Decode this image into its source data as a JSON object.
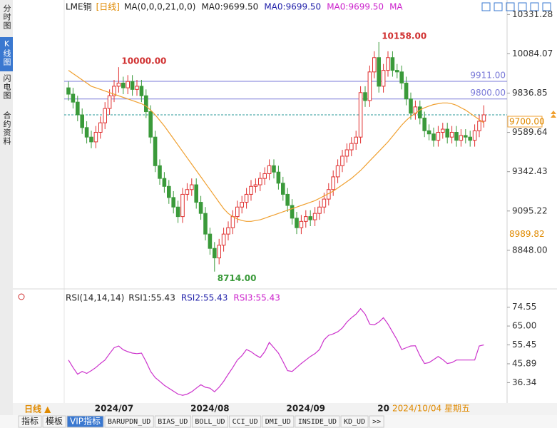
{
  "sidebar": [
    "分时图",
    "K线图",
    "闪电图",
    "合约资料"
  ],
  "bottom_bar": {
    "period": "日线 ▲",
    "cursor_date": "2024/10/04 星期五"
  },
  "tabs": [
    "指标",
    "模板",
    "VIP指标",
    "BARUPDN_UD",
    "BIAS_UD",
    "BOLL_UD",
    "CCI_UD",
    "DMI_UD",
    "INSIDE_UD",
    "KD_UD",
    ">>"
  ],
  "chart_data": [
    {
      "type": "candlestick",
      "title": "LME铜",
      "period": "[日线]",
      "legend": [
        {
          "text": "MA(0,0,0,21,0,0)",
          "color": "#222222"
        },
        {
          "text": "MA0:9699.50",
          "color": "#222222"
        },
        {
          "text": "MA0:9699.50",
          "color": "#2222aa"
        },
        {
          "text": "MA0:9699.50",
          "color": "#cc22cc"
        },
        {
          "text": "MA",
          "color": "#cc22cc"
        }
      ],
      "categories": [
        null,
        null,
        null,
        null,
        null,
        null,
        null,
        null,
        null,
        null,
        "2024/07",
        null,
        null,
        null,
        null,
        null,
        null,
        null,
        null,
        null,
        null,
        null,
        null,
        null,
        null,
        null,
        null,
        null,
        null,
        null,
        null,
        "2024/08",
        null,
        null,
        null,
        null,
        null,
        null,
        null,
        null,
        null,
        null,
        null,
        null,
        null,
        null,
        null,
        null,
        null,
        null,
        null,
        null,
        "2024/09",
        null,
        null,
        null,
        null,
        null,
        null,
        null,
        null,
        null,
        null,
        null,
        null,
        null,
        null,
        null,
        null,
        "20",
        null,
        null,
        null,
        null,
        null,
        null,
        null,
        null,
        null,
        null,
        null,
        null,
        null,
        null,
        null,
        null,
        null,
        null,
        null,
        null,
        null,
        null
      ],
      "open": [
        9870,
        9830,
        9780,
        9700,
        9620,
        9560,
        9530,
        9590,
        9650,
        9740,
        9820,
        9880,
        9900,
        9870,
        9910,
        9860,
        9880,
        9820,
        9720,
        9560,
        9380,
        9300,
        9250,
        9180,
        9120,
        9060,
        9200,
        9230,
        9260,
        9150,
        9080,
        8950,
        8860,
        8800,
        8880,
        8950,
        8990,
        9060,
        9120,
        9150,
        9200,
        9250,
        9260,
        9300,
        9330,
        9380,
        9340,
        9270,
        9200,
        9130,
        9050,
        8990,
        9030,
        9060,
        9040,
        9080,
        9120,
        9170,
        9230,
        9310,
        9380,
        9440,
        9480,
        9520,
        9560,
        9840,
        9790,
        9970,
        10060,
        9880,
        9980,
        10060,
        9980,
        9970,
        9900,
        9800,
        9710,
        9750,
        9680,
        9600,
        9580,
        9540,
        9590,
        9610,
        9560,
        9590,
        9540,
        9570,
        9560,
        9540,
        9600,
        9660
      ],
      "high": [
        9910,
        9870,
        9820,
        9740,
        9660,
        9600,
        9630,
        9690,
        9780,
        9860,
        9920,
        10000,
        9940,
        9950,
        9950,
        9920,
        9920,
        9860,
        9760,
        9600,
        9420,
        9340,
        9290,
        9220,
        9160,
        9240,
        9270,
        9300,
        9300,
        9190,
        9120,
        8990,
        8900,
        8920,
        8990,
        9030,
        9100,
        9160,
        9190,
        9240,
        9290,
        9300,
        9340,
        9370,
        9420,
        9420,
        9380,
        9310,
        9240,
        9170,
        9090,
        9070,
        9100,
        9100,
        9120,
        9160,
        9210,
        9270,
        9350,
        9420,
        9480,
        9520,
        9560,
        9600,
        9880,
        9880,
        10010,
        10100,
        10158,
        10020,
        10100,
        10100,
        10020,
        10010,
        9940,
        9840,
        9790,
        9790,
        9720,
        9640,
        9620,
        9630,
        9650,
        9650,
        9630,
        9630,
        9610,
        9610,
        9600,
        9640,
        9700,
        9760
      ],
      "low": [
        9790,
        9740,
        9660,
        9580,
        9520,
        9490,
        9490,
        9550,
        9610,
        9700,
        9780,
        9840,
        9830,
        9830,
        9820,
        9820,
        9780,
        9680,
        9520,
        9340,
        9260,
        9210,
        9140,
        9080,
        9020,
        9020,
        9160,
        9190,
        9110,
        9040,
        8910,
        8820,
        8714,
        8760,
        8840,
        8910,
        8950,
        9020,
        9080,
        9110,
        9160,
        9210,
        9220,
        9260,
        9290,
        9300,
        9230,
        9160,
        9090,
        9010,
        8950,
        8950,
        8990,
        9000,
        9000,
        9040,
        9080,
        9130,
        9190,
        9270,
        9340,
        9400,
        9440,
        9480,
        9520,
        9750,
        9750,
        9930,
        9840,
        9840,
        9940,
        9940,
        9930,
        9860,
        9760,
        9670,
        9670,
        9640,
        9560,
        9540,
        9500,
        9500,
        9550,
        9520,
        9520,
        9500,
        9500,
        9520,
        9500,
        9500,
        9560,
        9620
      ],
      "close": [
        9830,
        9780,
        9700,
        9620,
        9560,
        9530,
        9590,
        9650,
        9740,
        9820,
        9880,
        9900,
        9870,
        9910,
        9860,
        9880,
        9820,
        9720,
        9560,
        9380,
        9300,
        9250,
        9180,
        9120,
        9060,
        9200,
        9230,
        9260,
        9150,
        9080,
        8950,
        8860,
        8800,
        8880,
        8950,
        8990,
        9060,
        9120,
        9150,
        9200,
        9250,
        9260,
        9300,
        9330,
        9380,
        9340,
        9270,
        9200,
        9130,
        9050,
        8990,
        9030,
        9060,
        9040,
        9080,
        9120,
        9170,
        9230,
        9310,
        9380,
        9440,
        9480,
        9520,
        9560,
        9840,
        9790,
        9970,
        10060,
        9880,
        9980,
        10060,
        9980,
        9970,
        9900,
        9800,
        9710,
        9750,
        9680,
        9600,
        9580,
        9540,
        9590,
        9610,
        9560,
        9590,
        9540,
        9570,
        9560,
        9540,
        9600,
        9660,
        9700
      ],
      "up_color": "#e03030",
      "down_color": "#3a9a3a",
      "series": [
        {
          "color": "#f0a030",
          "values": [
            9980,
            9960,
            9940,
            9920,
            9900,
            9880,
            9870,
            9860,
            9850,
            9840,
            9830,
            9820,
            9810,
            9800,
            9790,
            9780,
            9770,
            9755,
            9730,
            9700,
            9665,
            9630,
            9590,
            9550,
            9510,
            9470,
            9430,
            9390,
            9350,
            9310,
            9270,
            9230,
            9190,
            9150,
            9110,
            9080,
            9060,
            9045,
            9035,
            9030,
            9030,
            9035,
            9040,
            9050,
            9060,
            9070,
            9080,
            9090,
            9100,
            9110,
            9120,
            9130,
            9140,
            9150,
            9160,
            9175,
            9190,
            9205,
            9220,
            9240,
            9260,
            9280,
            9300,
            9325,
            9350,
            9380,
            9410,
            9440,
            9470,
            9500,
            9530,
            9565,
            9600,
            9635,
            9665,
            9690,
            9710,
            9730,
            9745,
            9755,
            9765,
            9770,
            9775,
            9775,
            9770,
            9760,
            9745,
            9730,
            9710,
            9690,
            9670,
            9650
          ]
        }
      ],
      "ylim": [
        8650,
        10400
      ],
      "yticks": [
        10331.28,
        10084.07,
        9836.85,
        9589.64,
        9342.43,
        9095.22,
        {
          "value": 8848,
          "label": "8848.00"
        }
      ],
      "hlines": [
        {
          "value": 9911,
          "label": "9911.00",
          "color": "#7a7ad8"
        },
        {
          "value": 9800,
          "label": "9800.00",
          "color": "#7a7ad8"
        }
      ],
      "current": {
        "value": 9700,
        "label": "9700.00",
        "color": "#2a9a9a"
      },
      "axis_marker": {
        "value": 8989.82,
        "label": "8989.82"
      },
      "annotations": [
        {
          "text": "10000.00",
          "value": 10000,
          "color": "#d03030"
        },
        {
          "text": "10158.00",
          "value": 10158,
          "color": "#d03030"
        },
        {
          "text": "8714.00",
          "value": 8714,
          "color": "#3a9a3a"
        }
      ]
    },
    {
      "type": "line",
      "title": "RSI(14,14,14)",
      "legend": [
        {
          "text": "RSI1:55.43",
          "color": "#222222"
        },
        {
          "text": "RSI2:55.43",
          "color": "#2222aa"
        },
        {
          "text": "RSI3:55.43",
          "color": "#cc22cc"
        }
      ],
      "series": [
        {
          "color": "#cc33cc",
          "values": [
            47.8,
            44,
            40.6,
            42,
            41,
            42.4,
            44,
            46,
            47.8,
            51,
            54,
            54.9,
            53,
            52,
            51.3,
            51,
            51.3,
            47,
            42,
            38.9,
            37,
            35,
            33.5,
            32,
            30.5,
            29.9,
            30.5,
            31.7,
            33.5,
            35.3,
            34,
            33.5,
            31.7,
            34,
            37,
            40.6,
            44,
            47.8,
            50,
            53.1,
            52,
            50.3,
            49,
            52,
            56.7,
            54,
            51.3,
            47,
            42.4,
            42,
            44,
            46,
            47.8,
            49.6,
            51,
            53.1,
            58,
            60.3,
            61,
            62.1,
            64,
            67,
            69.2,
            71,
            73.8,
            71,
            66,
            65.6,
            67,
            69.2,
            66,
            62,
            58,
            53.1,
            54,
            54.9,
            55,
            50,
            46,
            46.5,
            48,
            49.6,
            48,
            46,
            46.5,
            47.8,
            47.8,
            47.8,
            47.8,
            47.8,
            54.9,
            55.43
          ]
        }
      ],
      "ylim": [
        26,
        82
      ],
      "yticks": [
        74.55,
        {
          "value": 65,
          "label": "65.00"
        },
        55.45,
        45.89,
        36.34
      ]
    }
  ]
}
